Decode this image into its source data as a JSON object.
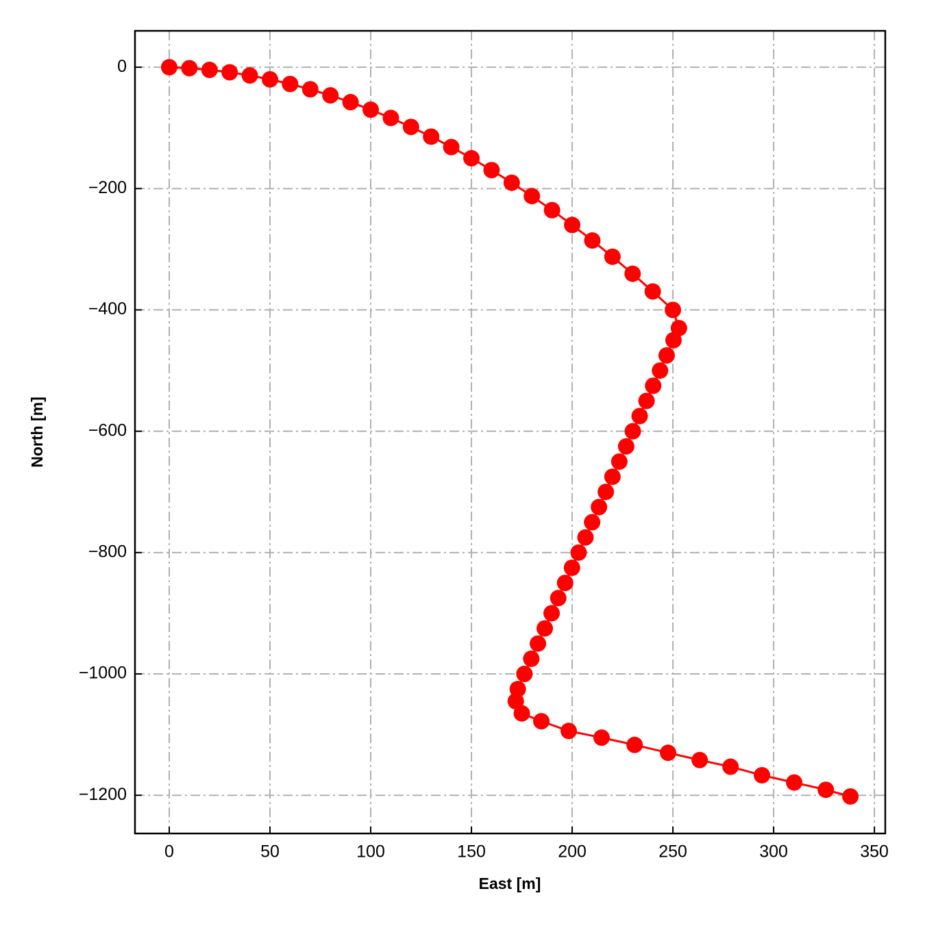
{
  "chart_data": {
    "type": "line",
    "x_label": "East [m]",
    "y_label": "North [m]",
    "x": [
      0,
      10,
      20,
      30,
      40,
      50,
      60,
      70,
      80,
      90,
      100,
      110,
      120,
      130,
      140,
      150,
      160,
      170,
      180,
      190,
      200,
      210,
      220,
      230,
      240,
      250,
      253,
      250.3,
      246.9,
      243.6,
      240.2,
      236.9,
      233.5,
      230.1,
      226.8,
      223.4,
      220.0,
      216.7,
      213.3,
      209.9,
      206.6,
      203.2,
      199.9,
      196.5,
      193.1,
      189.8,
      186.4,
      183.0,
      179.7,
      176.3,
      173,
      172,
      175,
      184.7,
      198.3,
      214.6,
      231,
      247.6,
      263.3,
      278.6,
      294.2,
      310.2,
      325.9,
      338.1
    ],
    "series": [
      {
        "color": "#ff0000",
        "values": [
          0,
          -1.6,
          -4.4,
          -8.4,
          -13.6,
          -20,
          -27.6,
          -36.4,
          -46.4,
          -57.6,
          -70,
          -83.6,
          -98.4,
          -114.4,
          -131.6,
          -150,
          -169.6,
          -190.4,
          -212.4,
          -235.6,
          -260,
          -285.6,
          -312.4,
          -340.4,
          -369.6,
          -400,
          -430,
          -450,
          -475,
          -500,
          -525,
          -550,
          -575,
          -600,
          -625,
          -650,
          -675,
          -700,
          -725,
          -750,
          -775,
          -800,
          -825,
          -850,
          -875,
          -900,
          -925,
          -950,
          -975,
          -1000,
          -1025,
          -1045,
          -1065,
          -1078,
          -1094,
          -1105,
          -1117,
          -1130,
          -1142,
          -1153,
          -1167,
          -1179,
          -1191,
          -1202
        ]
      }
    ],
    "xlim": [
      -17,
      355.4
    ],
    "ylim": [
      -1263,
      60
    ],
    "xticks": [
      0,
      50,
      100,
      150,
      200,
      250,
      300,
      350
    ],
    "yticks": [
      0,
      {
        "value": -200,
        "label": "−200"
      },
      {
        "value": -400,
        "label": "−400"
      },
      {
        "value": -600,
        "label": "−600"
      },
      {
        "value": -800,
        "label": "−800"
      },
      {
        "value": -1000,
        "label": "−1000"
      },
      {
        "value": -1200,
        "label": "−1200"
      }
    ],
    "grid": true
  }
}
